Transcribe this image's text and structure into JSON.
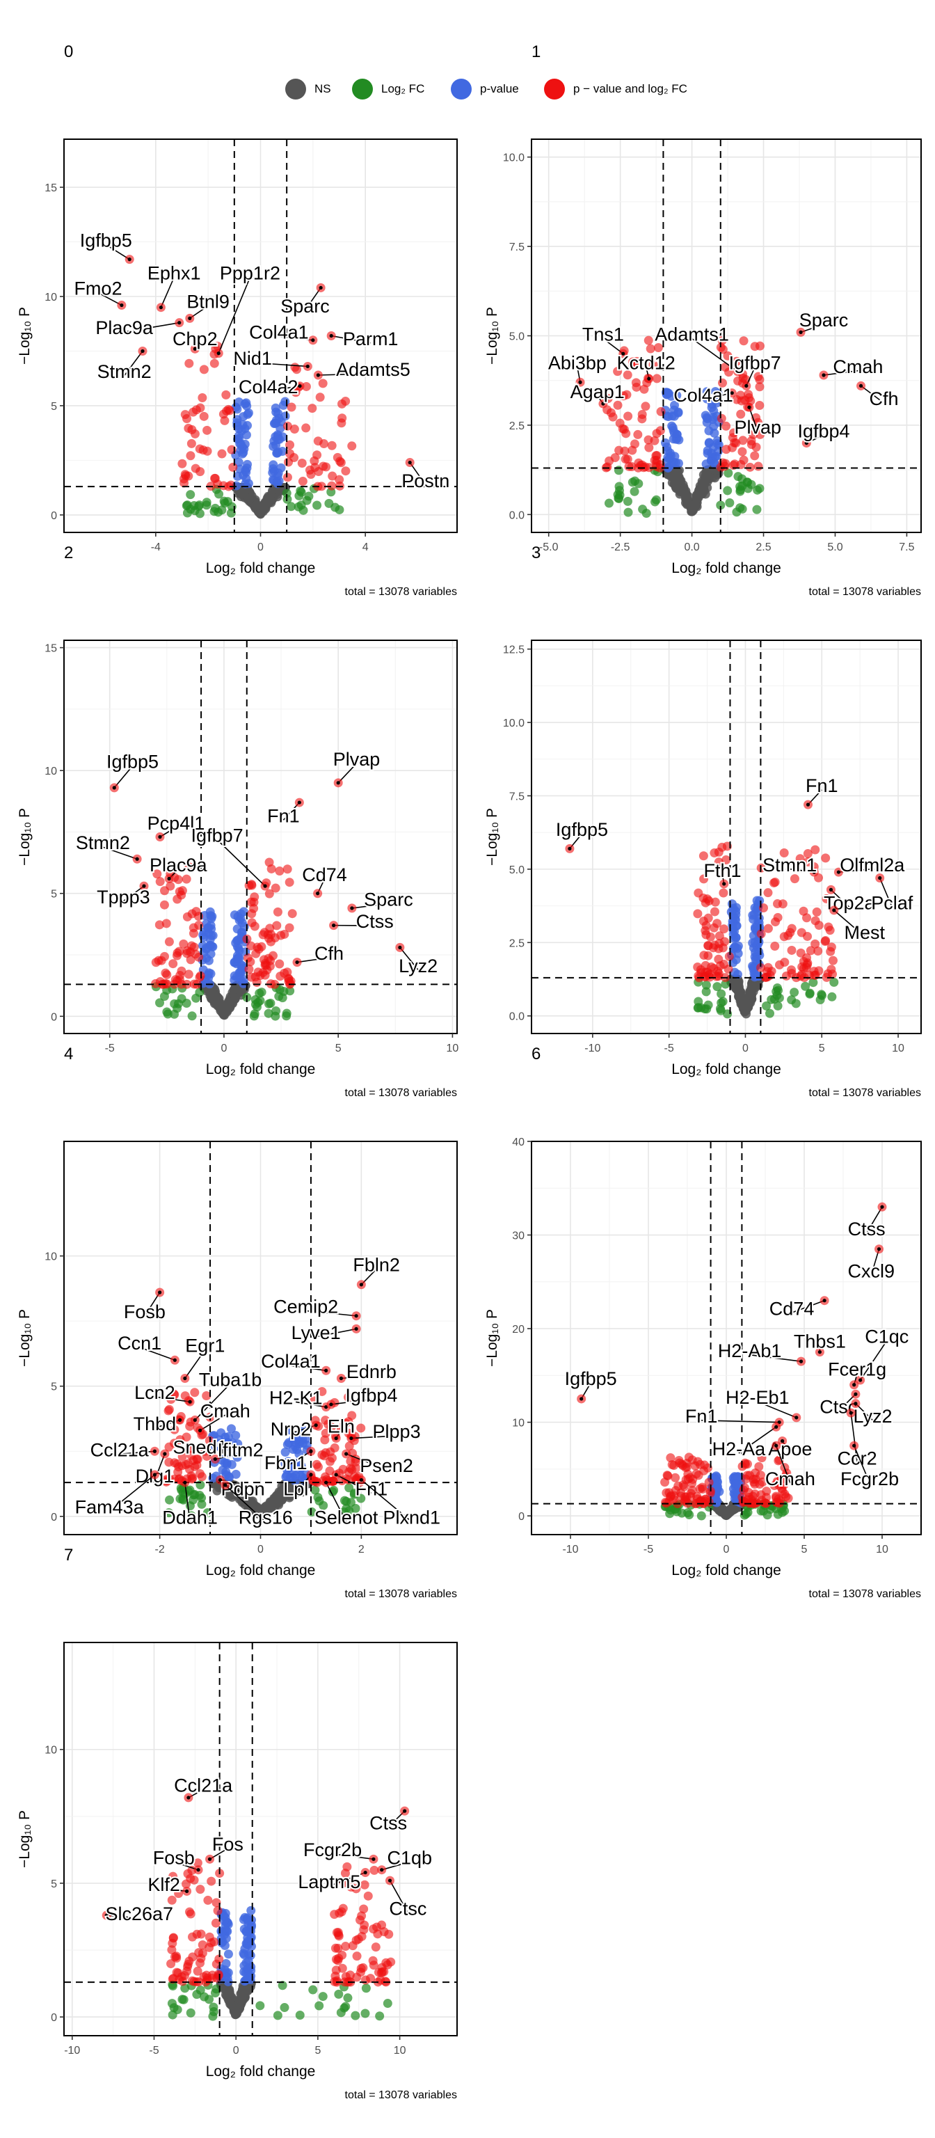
{
  "legend": {
    "items": [
      {
        "label": "NS",
        "color": "#555555"
      },
      {
        "label": "Log₂ FC",
        "color": "#228B22"
      },
      {
        "label": "p-value",
        "color": "#4169E1"
      },
      {
        "label": "p − value and log₂ FC",
        "color": "#EE1111"
      }
    ]
  },
  "colors": {
    "ns": "#555555",
    "fc": "#228B22",
    "p": "#4169E1",
    "both": "#EE1111"
  },
  "chart_data": [
    {
      "type": "scatter",
      "panel": "0",
      "xlabel": "Log₂ fold change",
      "ylabel": "−Log₁₀ P",
      "caption": "total = 13078 variables",
      "xlim": [
        -7.5,
        7.5
      ],
      "ylim": [
        -0.8,
        17.2
      ],
      "xticks": [
        -4,
        0,
        4
      ],
      "yticks": [
        0,
        5,
        10,
        15
      ],
      "fc_cutoff": [
        -1,
        1
      ],
      "p_cutoff": 1.3,
      "grid": true,
      "legend_position": "top",
      "spread": {
        "left": [
          -3.0,
          0.2
        ],
        "right": [
          -0.5,
          3.5
        ],
        "top": 6.5
      },
      "points": [
        {
          "label": "Igfbp5",
          "x": -5.0,
          "y": 11.7,
          "lx": -5.9,
          "ly": 12.5
        },
        {
          "label": "Fmo2",
          "x": -5.3,
          "y": 9.6,
          "lx": -6.2,
          "ly": 10.3
        },
        {
          "label": "Ephx1",
          "x": -3.8,
          "y": 9.5,
          "lx": -3.3,
          "ly": 11.0
        },
        {
          "label": "Btnl9",
          "x": -2.7,
          "y": 9.0,
          "lx": -2.0,
          "ly": 9.7
        },
        {
          "label": "Ppp1r2",
          "x": -1.6,
          "y": 7.4,
          "lx": -0.4,
          "ly": 11.0
        },
        {
          "label": "Plac9a",
          "x": -3.1,
          "y": 8.8,
          "lx": -5.2,
          "ly": 8.5
        },
        {
          "label": "Chp2",
          "x": -2.5,
          "y": 7.6,
          "lx": -2.5,
          "ly": 8.0
        },
        {
          "label": "Stmn2",
          "x": -4.5,
          "y": 7.5,
          "lx": -5.2,
          "ly": 6.5
        },
        {
          "label": "Sparc",
          "x": 2.3,
          "y": 10.4,
          "lx": 1.7,
          "ly": 9.5
        },
        {
          "label": "Col4a1",
          "x": 2.0,
          "y": 8.0,
          "lx": 0.7,
          "ly": 8.3
        },
        {
          "label": "Parm1",
          "x": 2.7,
          "y": 8.2,
          "lx": 4.2,
          "ly": 8.0
        },
        {
          "label": "Nid1",
          "x": 1.8,
          "y": 6.8,
          "lx": -0.3,
          "ly": 7.1
        },
        {
          "label": "Adamts5",
          "x": 2.2,
          "y": 6.4,
          "lx": 4.3,
          "ly": 6.6
        },
        {
          "label": "Col4a2",
          "x": 1.5,
          "y": 5.9,
          "lx": 0.3,
          "ly": 5.8
        },
        {
          "label": "Postn",
          "x": 5.7,
          "y": 2.4,
          "lx": 6.3,
          "ly": 1.5
        }
      ]
    },
    {
      "type": "scatter",
      "panel": "1",
      "xlabel": "Log₂ fold change",
      "ylabel": "−Log₁₀ P",
      "caption": "total = 13078 variables",
      "xlim": [
        -5.6,
        8.0
      ],
      "ylim": [
        -0.5,
        10.5
      ],
      "xticks": [
        -5.0,
        -2.5,
        0.0,
        2.5,
        5.0,
        7.5
      ],
      "yticks": [
        0.0,
        2.5,
        5.0,
        7.5,
        10.0
      ],
      "xtick_labels": [
        "-5.0",
        "-2.5",
        "0.0",
        "2.5",
        "5.0",
        "7.5"
      ],
      "ytick_labels": [
        "0.0",
        "2.5",
        "5.0",
        "7.5",
        "10.0"
      ],
      "fc_cutoff": [
        -1,
        1
      ],
      "p_cutoff": 1.3,
      "grid": true,
      "legend_position": "top",
      "spread": {
        "left": [
          -3.0,
          -0.8
        ],
        "right": [
          0.8,
          2.4
        ],
        "top": 3.6
      },
      "points": [
        {
          "label": "Tns1",
          "x": -2.4,
          "y": 4.5,
          "lx": -3.1,
          "ly": 5.0
        },
        {
          "label": "Abi3bp",
          "x": -3.9,
          "y": 3.7,
          "lx": -4.0,
          "ly": 4.2
        },
        {
          "label": "Kctd12",
          "x": -1.5,
          "y": 3.8,
          "lx": -1.6,
          "ly": 4.2
        },
        {
          "label": "Agap1",
          "x": -3.1,
          "y": 3.1,
          "lx": -3.3,
          "ly": 3.4
        },
        {
          "label": "Adamts1",
          "x": 1.6,
          "y": 4.0,
          "lx": 0.0,
          "ly": 5.0
        },
        {
          "label": "Igfbp7",
          "x": 1.9,
          "y": 3.6,
          "lx": 2.2,
          "ly": 4.2
        },
        {
          "label": "Col4a1",
          "x": 1.4,
          "y": 3.4,
          "lx": 0.4,
          "ly": 3.3
        },
        {
          "label": "Sparc",
          "x": 3.8,
          "y": 5.1,
          "lx": 4.6,
          "ly": 5.4
        },
        {
          "label": "Cmah",
          "x": 4.6,
          "y": 3.9,
          "lx": 5.8,
          "ly": 4.1
        },
        {
          "label": "Cfh",
          "x": 5.9,
          "y": 3.6,
          "lx": 6.7,
          "ly": 3.2
        },
        {
          "label": "Plvap",
          "x": 2.0,
          "y": 3.0,
          "lx": 2.3,
          "ly": 2.4
        },
        {
          "label": "Igfbp4",
          "x": 4.0,
          "y": 2.0,
          "lx": 4.6,
          "ly": 2.3
        }
      ]
    },
    {
      "type": "scatter",
      "panel": "2",
      "xlabel": "Log₂ fold change",
      "ylabel": "−Log₁₀ P",
      "caption": "total = 13078 variables",
      "xlim": [
        -7.0,
        10.2
      ],
      "ylim": [
        -0.7,
        15.3
      ],
      "xticks": [
        -5,
        0,
        5,
        10
      ],
      "yticks": [
        0,
        5,
        10,
        15
      ],
      "fc_cutoff": [
        -1,
        1
      ],
      "p_cutoff": 1.3,
      "grid": true,
      "legend_position": "top",
      "spread": {
        "left": [
          -3.0,
          -0.8
        ],
        "right": [
          0.8,
          3.0
        ],
        "top": 5.0
      },
      "points": [
        {
          "label": "Igfbp5",
          "x": -4.8,
          "y": 9.3,
          "lx": -4.0,
          "ly": 10.3
        },
        {
          "label": "Pcp4l1",
          "x": -2.8,
          "y": 7.3,
          "lx": -2.1,
          "ly": 7.8
        },
        {
          "label": "Stmn2",
          "x": -3.8,
          "y": 6.4,
          "lx": -5.3,
          "ly": 7.0
        },
        {
          "label": "Plac9a",
          "x": -2.4,
          "y": 5.6,
          "lx": -2.0,
          "ly": 6.1
        },
        {
          "label": "Tppp3",
          "x": -3.5,
          "y": 5.3,
          "lx": -4.4,
          "ly": 4.8
        },
        {
          "label": "Plvap",
          "x": 5.0,
          "y": 9.5,
          "lx": 5.8,
          "ly": 10.4
        },
        {
          "label": "Fn1",
          "x": 3.3,
          "y": 8.7,
          "lx": 2.6,
          "ly": 8.1
        },
        {
          "label": "Igfbp7",
          "x": 1.8,
          "y": 5.3,
          "lx": -0.3,
          "ly": 7.3
        },
        {
          "label": "Cd74",
          "x": 4.1,
          "y": 5.0,
          "lx": 4.4,
          "ly": 5.7
        },
        {
          "label": "Sparc",
          "x": 5.6,
          "y": 4.4,
          "lx": 7.2,
          "ly": 4.7
        },
        {
          "label": "Ctss",
          "x": 4.8,
          "y": 3.7,
          "lx": 6.6,
          "ly": 3.8
        },
        {
          "label": "Cfh",
          "x": 3.2,
          "y": 2.2,
          "lx": 4.6,
          "ly": 2.5
        },
        {
          "label": "Lyz2",
          "x": 7.7,
          "y": 2.8,
          "lx": 8.5,
          "ly": 2.0
        }
      ]
    },
    {
      "type": "scatter",
      "panel": "3",
      "xlabel": "Log₂ fold change",
      "ylabel": "−Log₁₀ P",
      "caption": "total = 13078 variables",
      "xlim": [
        -14.0,
        11.5
      ],
      "ylim": [
        -0.6,
        12.8
      ],
      "xticks": [
        -10,
        -5,
        0,
        5,
        10
      ],
      "yticks": [
        0.0,
        2.5,
        5.0,
        7.5,
        10.0,
        12.5
      ],
      "ytick_labels": [
        "0.0",
        "2.5",
        "5.0",
        "7.5",
        "10.0",
        "12.5"
      ],
      "fc_cutoff": [
        -1,
        1
      ],
      "p_cutoff": 1.3,
      "grid": true,
      "legend_position": "top",
      "spread": {
        "left": [
          -3.2,
          -1.0
        ],
        "right": [
          1.0,
          5.8
        ],
        "top": 4.5
      },
      "points": [
        {
          "label": "Igfbp5",
          "x": -11.5,
          "y": 5.7,
          "lx": -10.7,
          "ly": 6.3
        },
        {
          "label": "Fth1",
          "x": -1.4,
          "y": 4.5,
          "lx": -1.5,
          "ly": 4.9
        },
        {
          "label": "Fn1",
          "x": 4.1,
          "y": 7.2,
          "lx": 5.0,
          "ly": 7.8
        },
        {
          "label": "Stmn1",
          "x": 4.5,
          "y": 4.9,
          "lx": 2.9,
          "ly": 5.1
        },
        {
          "label": "Olfml2a",
          "x": 6.1,
          "y": 4.9,
          "lx": 8.3,
          "ly": 5.1
        },
        {
          "label": "Top2a",
          "x": 5.6,
          "y": 4.3,
          "lx": 6.8,
          "ly": 3.8
        },
        {
          "label": "Pclaf",
          "x": 8.8,
          "y": 4.7,
          "lx": 9.6,
          "ly": 3.8
        },
        {
          "label": "Mest",
          "x": 5.8,
          "y": 3.6,
          "lx": 7.8,
          "ly": 2.8
        }
      ]
    },
    {
      "type": "scatter",
      "panel": "4",
      "xlabel": "Log₂ fold change",
      "ylabel": "−Log₁₀ P",
      "caption": "total = 13078 variables",
      "xlim": [
        -3.9,
        3.9
      ],
      "ylim": [
        -0.7,
        14.4
      ],
      "xticks": [
        -2,
        0,
        2
      ],
      "yticks": [
        0,
        5,
        10
      ],
      "fc_cutoff": [
        -1,
        1
      ],
      "p_cutoff": 1.3,
      "grid": true,
      "legend_position": "top",
      "spread": {
        "left": [
          -1.9,
          -0.9
        ],
        "right": [
          0.9,
          2.0
        ],
        "top": 3.5
      },
      "points": [
        {
          "label": "Fosb",
          "x": -2.0,
          "y": 8.6,
          "lx": -2.3,
          "ly": 7.8
        },
        {
          "label": "Ccn1",
          "x": -1.7,
          "y": 6.0,
          "lx": -2.4,
          "ly": 6.6
        },
        {
          "label": "Egr1",
          "x": -1.5,
          "y": 5.3,
          "lx": -1.1,
          "ly": 6.5
        },
        {
          "label": "Tuba1b",
          "x": -1.3,
          "y": 3.7,
          "lx": -0.6,
          "ly": 5.2
        },
        {
          "label": "Lcn2",
          "x": -1.4,
          "y": 4.4,
          "lx": -2.1,
          "ly": 4.7
        },
        {
          "label": "Cmah",
          "x": -1.2,
          "y": 3.3,
          "lx": -0.7,
          "ly": 4.0
        },
        {
          "label": "Thbd",
          "x": -1.6,
          "y": 3.7,
          "lx": -2.1,
          "ly": 3.5
        },
        {
          "label": "Ccl21a",
          "x": -2.1,
          "y": 2.5,
          "lx": -2.8,
          "ly": 2.5
        },
        {
          "label": "Sned1",
          "x": -1.1,
          "y": 2.5,
          "lx": -1.2,
          "ly": 2.6
        },
        {
          "label": "Dlg1",
          "x": -1.9,
          "y": 2.4,
          "lx": -2.1,
          "ly": 1.5
        },
        {
          "label": "Ifitm2",
          "x": -0.9,
          "y": 2.2,
          "lx": -0.4,
          "ly": 2.5
        },
        {
          "label": "Fam43a",
          "x": -2.1,
          "y": 1.6,
          "lx": -3.0,
          "ly": 0.3
        },
        {
          "label": "Ddah1",
          "x": -1.5,
          "y": 1.3,
          "lx": -1.4,
          "ly": -0.1
        },
        {
          "label": "Pdpn",
          "x": -0.8,
          "y": 1.4,
          "lx": -0.35,
          "ly": 1.0
        },
        {
          "label": "Rgs16",
          "x": -0.7,
          "y": 1.2,
          "lx": 0.1,
          "ly": -0.1
        },
        {
          "label": "Fbln2",
          "x": 2.0,
          "y": 8.9,
          "lx": 2.3,
          "ly": 9.6
        },
        {
          "label": "Cemip2",
          "x": 1.9,
          "y": 7.7,
          "lx": 0.9,
          "ly": 8.0
        },
        {
          "label": "Lyve1",
          "x": 1.9,
          "y": 7.2,
          "lx": 1.1,
          "ly": 7.0
        },
        {
          "label": "Col4a1",
          "x": 1.3,
          "y": 5.6,
          "lx": 0.6,
          "ly": 5.9
        },
        {
          "label": "Ednrb",
          "x": 1.6,
          "y": 5.3,
          "lx": 2.2,
          "ly": 5.5
        },
        {
          "label": "H2-K1",
          "x": 1.3,
          "y": 4.2,
          "lx": 0.7,
          "ly": 4.5
        },
        {
          "label": "Igfbp4",
          "x": 1.4,
          "y": 4.3,
          "lx": 2.2,
          "ly": 4.6
        },
        {
          "label": "Nrp2",
          "x": 1.1,
          "y": 3.5,
          "lx": 0.6,
          "ly": 3.3
        },
        {
          "label": "Eln",
          "x": 1.5,
          "y": 3.0,
          "lx": 1.6,
          "ly": 3.4
        },
        {
          "label": "Plpp3",
          "x": 1.8,
          "y": 3.0,
          "lx": 2.7,
          "ly": 3.2
        },
        {
          "label": "Fbn1",
          "x": 1.0,
          "y": 2.5,
          "lx": 0.5,
          "ly": 2.0
        },
        {
          "label": "Psen2",
          "x": 1.7,
          "y": 2.4,
          "lx": 2.5,
          "ly": 1.9
        },
        {
          "label": "Lpl",
          "x": 1.0,
          "y": 1.6,
          "lx": 0.7,
          "ly": 1.0
        },
        {
          "label": "Fn1",
          "x": 1.5,
          "y": 1.6,
          "lx": 2.2,
          "ly": 1.0
        },
        {
          "label": "Selenot",
          "x": 1.3,
          "y": 1.3,
          "lx": 1.7,
          "ly": -0.1
        },
        {
          "label": "Plxnd1",
          "x": 2.0,
          "y": 1.4,
          "lx": 3.0,
          "ly": -0.1
        }
      ]
    },
    {
      "type": "scatter",
      "panel": "6",
      "xlabel": "Log₂ fold change",
      "ylabel": "−Log₁₀ P",
      "caption": "total = 13078 variables",
      "xlim": [
        -12.5,
        12.5
      ],
      "ylim": [
        -2.0,
        40.0
      ],
      "xticks": [
        -10,
        -5,
        0,
        5,
        10
      ],
      "yticks": [
        0,
        10,
        20,
        30,
        40
      ],
      "fc_cutoff": [
        -1,
        1
      ],
      "p_cutoff": 1.3,
      "grid": true,
      "legend_position": "top",
      "spread": {
        "left": [
          -4.0,
          -1.0
        ],
        "right": [
          1.0,
          4.0
        ],
        "top": 5.0
      },
      "points": [
        {
          "label": "Igfbp5",
          "x": -9.3,
          "y": 12.5,
          "lx": -8.7,
          "ly": 14.5
        },
        {
          "label": "Ctss",
          "x": 10.0,
          "y": 33.0,
          "lx": 9.0,
          "ly": 30.5
        },
        {
          "label": "Cxcl9",
          "x": 9.8,
          "y": 28.5,
          "lx": 9.3,
          "ly": 26.0
        },
        {
          "label": "Cd74",
          "x": 6.3,
          "y": 23.0,
          "lx": 4.2,
          "ly": 22.0
        },
        {
          "label": "Thbs1",
          "x": 6.0,
          "y": 17.5,
          "lx": 6.0,
          "ly": 18.5
        },
        {
          "label": "C1qc",
          "x": 8.6,
          "y": 14.5,
          "lx": 10.3,
          "ly": 19.0
        },
        {
          "label": "H2-Ab1",
          "x": 4.8,
          "y": 16.5,
          "lx": 1.5,
          "ly": 17.5
        },
        {
          "label": "Fcer1g",
          "x": 8.2,
          "y": 14.0,
          "lx": 8.4,
          "ly": 15.5
        },
        {
          "label": "H2-Eb1",
          "x": 4.5,
          "y": 10.5,
          "lx": 2.0,
          "ly": 12.5
        },
        {
          "label": "Ctsc",
          "x": 8.3,
          "y": 13.0,
          "lx": 7.2,
          "ly": 11.5
        },
        {
          "label": "Lyz2",
          "x": 8.3,
          "y": 12.0,
          "lx": 9.4,
          "ly": 10.5
        },
        {
          "label": "Fn1",
          "x": 3.4,
          "y": 10.0,
          "lx": -1.6,
          "ly": 10.5
        },
        {
          "label": "H2-Aa",
          "x": 3.2,
          "y": 9.5,
          "lx": 0.8,
          "ly": 7.0
        },
        {
          "label": "Apoe",
          "x": 3.6,
          "y": 8.0,
          "lx": 4.1,
          "ly": 7.0
        },
        {
          "label": "Ccr2",
          "x": 8.0,
          "y": 11.0,
          "lx": 8.4,
          "ly": 6.0
        },
        {
          "label": "Cmah",
          "x": 3.2,
          "y": 7.5,
          "lx": 4.1,
          "ly": 3.8
        },
        {
          "label": "Fcgr2b",
          "x": 8.2,
          "y": 7.5,
          "lx": 9.2,
          "ly": 3.8
        }
      ]
    },
    {
      "type": "scatter",
      "panel": "7",
      "xlabel": "Log₂ fold change",
      "ylabel": "−Log₁₀ P",
      "caption": "total = 13078 variables",
      "xlim": [
        -10.5,
        13.5
      ],
      "ylim": [
        -0.7,
        14.0
      ],
      "xticks": [
        -10,
        -5,
        0,
        5,
        10
      ],
      "yticks": [
        0,
        5,
        10
      ],
      "fc_cutoff": [
        -1,
        1
      ],
      "p_cutoff": 1.3,
      "grid": true,
      "legend_position": "top",
      "spread": {
        "left": [
          -4.0,
          -1.0
        ],
        "right": [
          6.0,
          9.5
        ],
        "top": 4.5
      },
      "points": [
        {
          "label": "Ccl21a",
          "x": -2.9,
          "y": 8.2,
          "lx": -2.0,
          "ly": 8.6
        },
        {
          "label": "Fos",
          "x": -1.6,
          "y": 5.9,
          "lx": -0.5,
          "ly": 6.4
        },
        {
          "label": "Fosb",
          "x": -2.3,
          "y": 5.5,
          "lx": -3.8,
          "ly": 5.9
        },
        {
          "label": "Klf2",
          "x": -3.0,
          "y": 4.7,
          "lx": -4.4,
          "ly": 4.9
        },
        {
          "label": "Slc26a7",
          "x": -7.9,
          "y": 3.8,
          "lx": -5.9,
          "ly": 3.8
        },
        {
          "label": "Ctss",
          "x": 10.3,
          "y": 7.7,
          "lx": 9.3,
          "ly": 7.2
        },
        {
          "label": "Fcgr2b",
          "x": 8.4,
          "y": 5.9,
          "lx": 5.9,
          "ly": 6.2
        },
        {
          "label": "C1qb",
          "x": 8.9,
          "y": 5.5,
          "lx": 10.6,
          "ly": 5.9
        },
        {
          "label": "Laptm5",
          "x": 7.9,
          "y": 5.4,
          "lx": 5.7,
          "ly": 5.0
        },
        {
          "label": "Ctsc",
          "x": 9.4,
          "y": 5.1,
          "lx": 10.5,
          "ly": 4.0
        }
      ]
    }
  ]
}
